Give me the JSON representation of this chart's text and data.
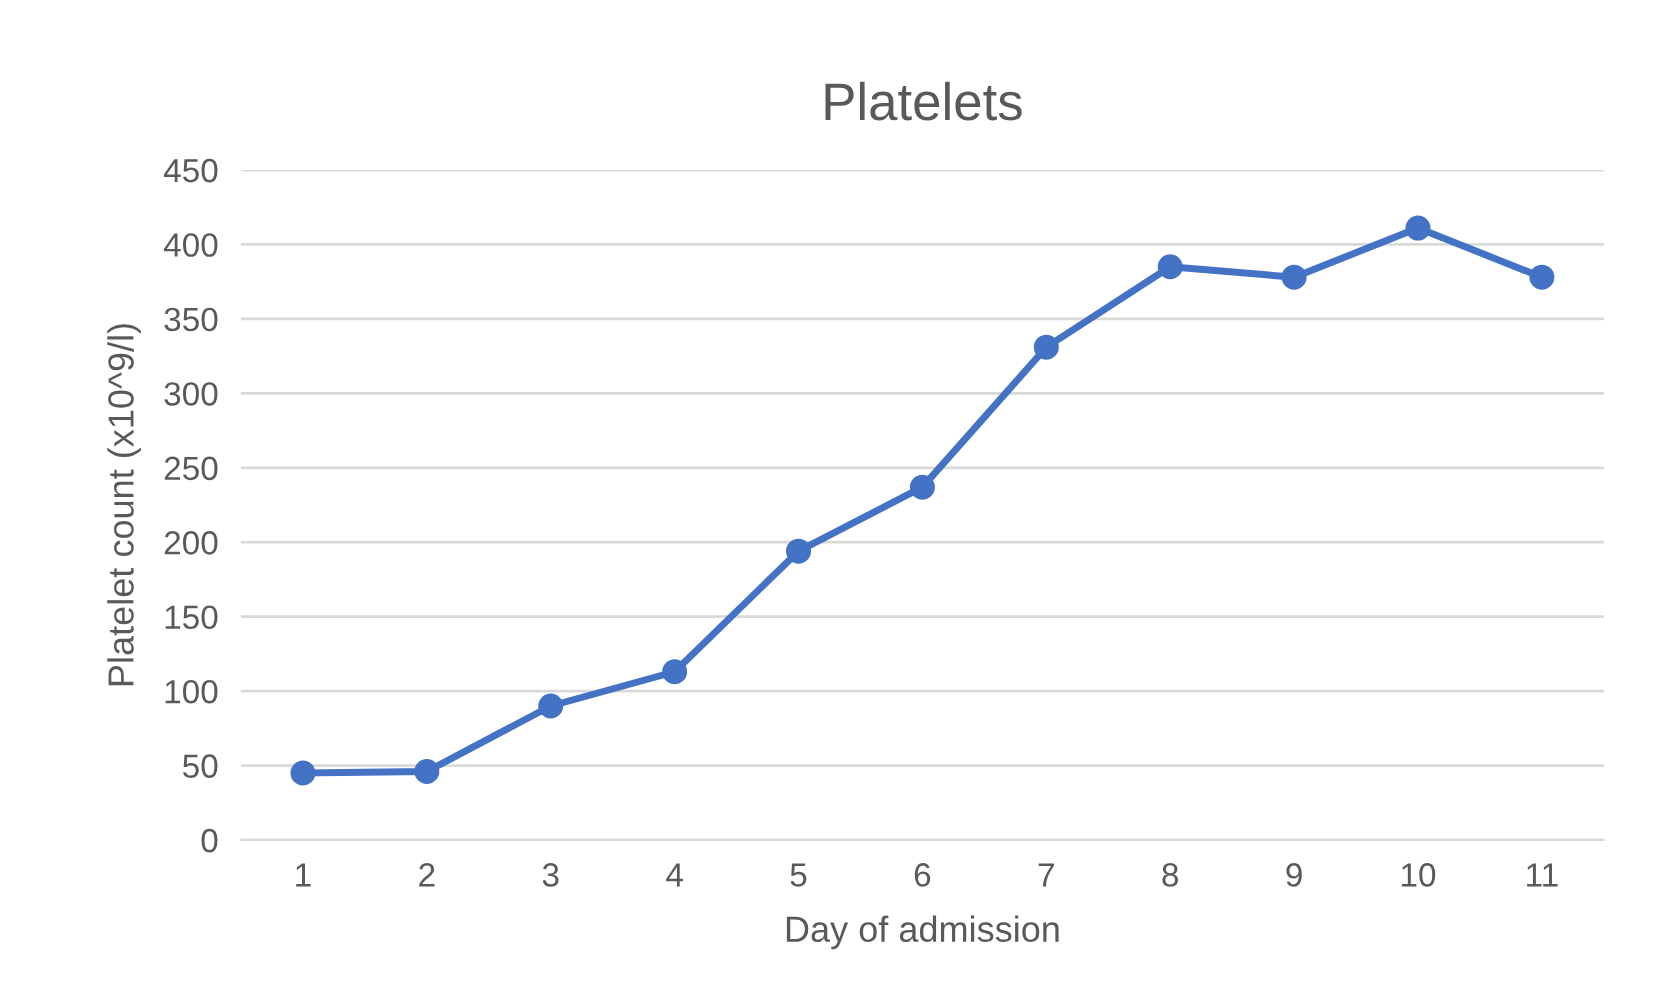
{
  "chart_data": {
    "type": "line",
    "title": "Platelets",
    "xlabel": "Day of admission",
    "ylabel": "Platelet count (x10^9/l)",
    "categories": [
      "1",
      "2",
      "3",
      "4",
      "5",
      "6",
      "7",
      "8",
      "9",
      "10",
      "11"
    ],
    "series": [
      {
        "color": "#4472c4",
        "values": [
          45,
          46,
          90,
          113,
          194,
          237,
          331,
          385,
          378,
          411,
          378
        ]
      }
    ],
    "ylim": [
      0,
      450
    ],
    "yticks": [
      0,
      50,
      100,
      150,
      200,
      250,
      300,
      350,
      400,
      450
    ],
    "grid": "y",
    "marker": "circle",
    "line_style": "solid"
  }
}
